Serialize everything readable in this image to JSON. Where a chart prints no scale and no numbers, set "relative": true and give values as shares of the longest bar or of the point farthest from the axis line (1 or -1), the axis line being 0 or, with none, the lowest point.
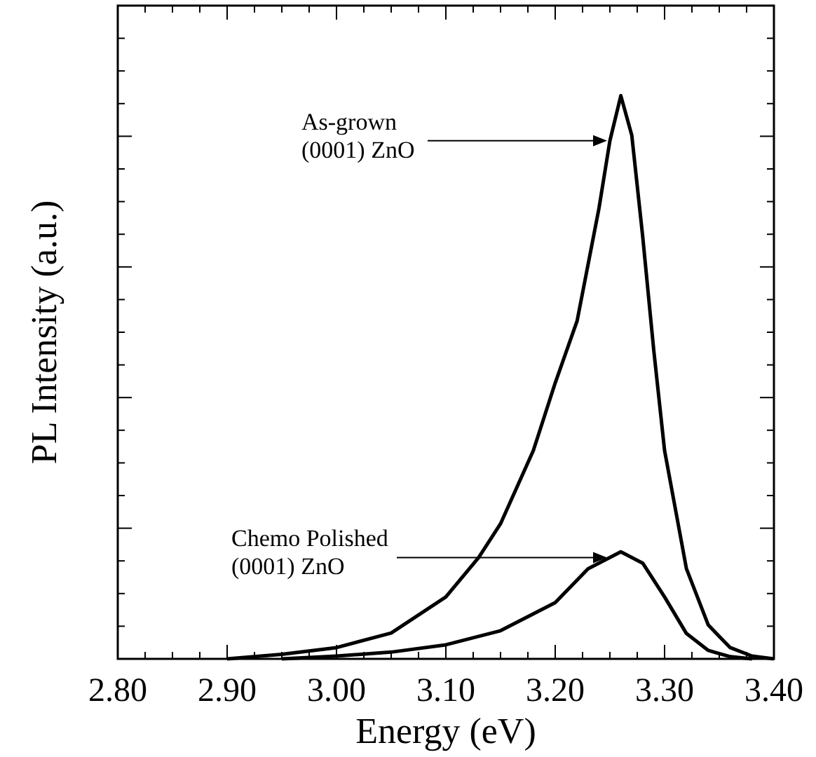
{
  "chart_data": {
    "type": "line",
    "relative": true,
    "xlabel": "Energy (eV)",
    "ylabel": "PL Intensity (a.u.)",
    "xlim": [
      2.8,
      3.4
    ],
    "xticks": [
      {
        "value": 2.8,
        "label": "2.80"
      },
      {
        "value": 2.9,
        "label": "2.90"
      },
      {
        "value": 3.0,
        "label": "3.00"
      },
      {
        "value": 3.1,
        "label": "3.10"
      },
      {
        "value": 3.2,
        "label": "3.20"
      },
      {
        "value": 3.3,
        "label": "3.30"
      },
      {
        "value": 3.4,
        "label": "3.40"
      }
    ],
    "grid": false,
    "marker": "none",
    "line_style": "solid",
    "series": [
      {
        "color": "#000000",
        "x": [
          2.9,
          2.95,
          3.0,
          3.05,
          3.1,
          3.13,
          3.15,
          3.18,
          3.2,
          3.22,
          3.24,
          3.25,
          3.26,
          3.27,
          3.28,
          3.29,
          3.3,
          3.32,
          3.34,
          3.36,
          3.38,
          3.4
        ],
        "values": [
          0.0,
          0.008,
          0.02,
          0.046,
          0.11,
          0.18,
          0.24,
          0.37,
          0.49,
          0.6,
          0.8,
          0.92,
          1.0,
          0.93,
          0.75,
          0.55,
          0.37,
          0.16,
          0.06,
          0.02,
          0.005,
          0.0
        ]
      },
      {
        "color": "#000000",
        "x": [
          2.95,
          3.0,
          3.05,
          3.1,
          3.15,
          3.2,
          3.23,
          3.26,
          3.28,
          3.3,
          3.32,
          3.34,
          3.36,
          3.38
        ],
        "values": [
          0.0,
          0.005,
          0.012,
          0.025,
          0.05,
          0.1,
          0.16,
          0.19,
          0.17,
          0.11,
          0.045,
          0.015,
          0.004,
          0.0
        ]
      }
    ],
    "annotations": [
      {
        "text": "As-grown\n(0001) ZnO",
        "x": 3.25,
        "y": 0.92
      },
      {
        "text": "Chemo Polished\n(0001) ZnO",
        "x": 3.25,
        "y": 0.18
      }
    ]
  }
}
